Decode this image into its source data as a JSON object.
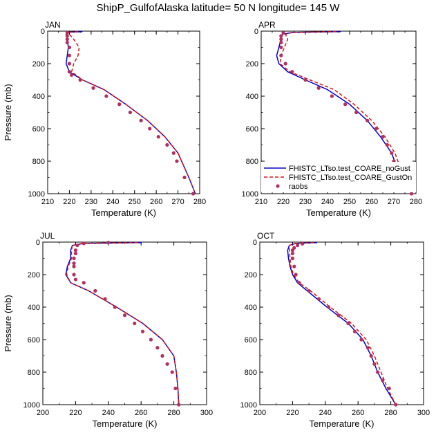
{
  "title": "ShipP_GulfofAlaska  latitude= 50 N longitude= 145 W",
  "legend": {
    "entries": [
      {
        "label": "FHISTC_LTso.test_COARE_noGust",
        "color": "#0000cc",
        "style": "solid"
      },
      {
        "label": "FHISTC_LTso.test_COARE_GustOn",
        "color": "#dd1111",
        "style": "dashed"
      },
      {
        "label": "raobs",
        "color": "#b03060",
        "style": "marker"
      }
    ]
  },
  "chart_data": [
    {
      "type": "line",
      "panel_label": "JAN",
      "xlabel": "Temperature (K)",
      "ylabel": "Pressure (mb)",
      "xlim": [
        210,
        280
      ],
      "ylim": [
        1000,
        0
      ],
      "xticks": [
        210,
        220,
        230,
        240,
        250,
        260,
        270,
        280
      ],
      "yticks": [
        0,
        200,
        400,
        600,
        800,
        1000
      ],
      "series": [
        {
          "name": "FHISTC_LTso.test_COARE_noGust",
          "color": "#0000cc",
          "style": "solid",
          "x": [
            226,
            219.5,
            218.5,
            219,
            219.5,
            219,
            218.5,
            220,
            226,
            236,
            246,
            256,
            264,
            270,
            275,
            278
          ],
          "y": [
            3,
            7,
            20,
            50,
            100,
            150,
            200,
            250,
            300,
            360,
            450,
            550,
            650,
            750,
            900,
            1000
          ]
        },
        {
          "name": "FHISTC_LTso.test_COARE_GustOn",
          "color": "#dd1111",
          "style": "dashed",
          "x": [
            224,
            220,
            220,
            222,
            224.5,
            224,
            222,
            221,
            226,
            236,
            246,
            256,
            264,
            270,
            275,
            278
          ],
          "y": [
            3,
            7,
            20,
            50,
            100,
            150,
            200,
            250,
            300,
            360,
            450,
            550,
            650,
            750,
            900,
            1000
          ]
        },
        {
          "name": "raobs",
          "color": "#b03060",
          "style": "marker",
          "x": [
            219,
            219,
            219,
            219,
            220,
            220,
            220,
            220,
            221,
            225,
            231,
            237,
            243,
            248,
            253,
            257,
            261,
            265,
            268,
            269.5,
            273,
            277
          ],
          "y": [
            10,
            30,
            50,
            70,
            100,
            150,
            200,
            250,
            270,
            300,
            350,
            400,
            450,
            500,
            550,
            600,
            650,
            700,
            750,
            800,
            900,
            1000
          ]
        }
      ]
    },
    {
      "type": "line",
      "panel_label": "APR",
      "xlabel": "Temperature (K)",
      "ylabel": "",
      "xlim": [
        210,
        280
      ],
      "ylim": [
        1000,
        0
      ],
      "xticks": [
        210,
        220,
        230,
        240,
        250,
        260,
        270,
        280
      ],
      "yticks": [
        0,
        200,
        400,
        600,
        800,
        1000
      ],
      "series": [
        {
          "name": "FHISTC_LTso.test_COARE_noGust",
          "color": "#0000cc",
          "style": "solid",
          "x": [
            246,
            224,
            219.5,
            219,
            218,
            217,
            218,
            222,
            230,
            240,
            250,
            258,
            264,
            269,
            273,
            278
          ],
          "y": [
            3,
            8,
            20,
            50,
            100,
            150,
            200,
            250,
            300,
            360,
            450,
            550,
            650,
            750,
            900,
            1000
          ]
        },
        {
          "name": "FHISTC_LTso.test_COARE_GustOn",
          "color": "#dd1111",
          "style": "dashed",
          "x": [
            244,
            224,
            221,
            222,
            220.5,
            219,
            218.5,
            223,
            232,
            243,
            252,
            260,
            266,
            270.5,
            274.5,
            278
          ],
          "y": [
            3,
            8,
            20,
            50,
            100,
            150,
            200,
            250,
            300,
            360,
            450,
            550,
            650,
            750,
            900,
            1000
          ]
        },
        {
          "name": "raobs",
          "color": "#b03060",
          "style": "marker",
          "x": [
            220,
            219,
            219,
            219,
            219,
            219,
            221,
            224,
            230,
            236,
            242,
            248,
            253,
            258,
            262,
            265,
            267,
            269,
            270,
            272,
            274,
            278
          ],
          "y": [
            10,
            30,
            50,
            70,
            100,
            150,
            200,
            250,
            300,
            350,
            400,
            450,
            500,
            550,
            600,
            650,
            700,
            750,
            800,
            850,
            900,
            1000
          ]
        }
      ]
    },
    {
      "type": "line",
      "panel_label": "JUL",
      "xlabel": "Temperature (K)",
      "ylabel": "Pressure (mb)",
      "xlim": [
        200,
        300
      ],
      "ylim": [
        1000,
        0
      ],
      "xticks": [
        200,
        220,
        240,
        260,
        280,
        300
      ],
      "yticks": [
        0,
        200,
        400,
        600,
        800,
        1000
      ],
      "series": [
        {
          "name": "FHISTC_LTso.test_COARE_noGust",
          "color": "#0000cc",
          "style": "solid",
          "x": [
            260,
            225,
            218,
            217,
            217,
            215,
            214,
            217,
            228,
            245,
            261,
            273,
            280,
            281.5,
            282.5,
            283
          ],
          "y": [
            3,
            8,
            20,
            50,
            100,
            150,
            200,
            250,
            300,
            400,
            500,
            600,
            700,
            800,
            900,
            1000
          ]
        },
        {
          "name": "FHISTC_LTso.test_COARE_GustOn",
          "color": "#dd1111",
          "style": "dashed",
          "x": [
            258,
            224,
            218,
            217.5,
            217.5,
            215.5,
            214.5,
            217,
            228,
            245,
            261,
            273,
            280,
            281.5,
            282.5,
            283
          ],
          "y": [
            3,
            8,
            20,
            50,
            100,
            150,
            200,
            250,
            300,
            400,
            500,
            600,
            700,
            800,
            900,
            1000
          ]
        },
        {
          "name": "raobs",
          "color": "#b03060",
          "style": "marker",
          "x": [
            240,
            225,
            221,
            220,
            220,
            219,
            219,
            219,
            219,
            220,
            225,
            232,
            238,
            244,
            250,
            256,
            261,
            266,
            270,
            273,
            276,
            279,
            281,
            283
          ],
          "y": [
            3,
            8,
            20,
            50,
            70,
            100,
            130,
            150,
            200,
            230,
            250,
            300,
            350,
            400,
            450,
            500,
            550,
            600,
            650,
            700,
            750,
            800,
            900,
            1000
          ]
        }
      ]
    },
    {
      "type": "line",
      "panel_label": "OCT",
      "xlabel": "Temperature (K)",
      "ylabel": "",
      "xlim": [
        200,
        300
      ],
      "ylim": [
        1000,
        0
      ],
      "xticks": [
        200,
        220,
        240,
        260,
        280,
        300
      ],
      "yticks": [
        0,
        200,
        400,
        600,
        800,
        1000
      ],
      "series": [
        {
          "name": "FHISTC_LTso.test_COARE_noGust",
          "color": "#0000cc",
          "style": "solid",
          "x": [
            235,
            222,
            218,
            217,
            217.5,
            218.5,
            220,
            223,
            229,
            241,
            254,
            263,
            268,
            272,
            277,
            283
          ],
          "y": [
            3,
            8,
            20,
            50,
            100,
            150,
            200,
            250,
            300,
            400,
            500,
            600,
            700,
            800,
            900,
            1000
          ]
        },
        {
          "name": "FHISTC_LTso.test_COARE_GustOn",
          "color": "#dd1111",
          "style": "dashed",
          "x": [
            233,
            222,
            218,
            218,
            218.5,
            219,
            220.5,
            224,
            231,
            243,
            256,
            265,
            270,
            274,
            278,
            283
          ],
          "y": [
            3,
            8,
            20,
            50,
            100,
            150,
            200,
            250,
            300,
            400,
            500,
            600,
            700,
            800,
            900,
            1000
          ]
        },
        {
          "name": "raobs",
          "color": "#b03060",
          "style": "marker",
          "x": [
            226,
            223,
            221,
            220,
            220,
            220,
            221,
            222,
            224,
            230,
            236,
            242,
            248,
            254,
            258,
            262,
            266,
            268,
            270,
            272,
            275,
            279,
            283
          ],
          "y": [
            10,
            20,
            35,
            50,
            70,
            100,
            150,
            200,
            250,
            300,
            350,
            400,
            450,
            500,
            550,
            600,
            650,
            700,
            750,
            800,
            850,
            900,
            1000
          ]
        }
      ]
    }
  ]
}
